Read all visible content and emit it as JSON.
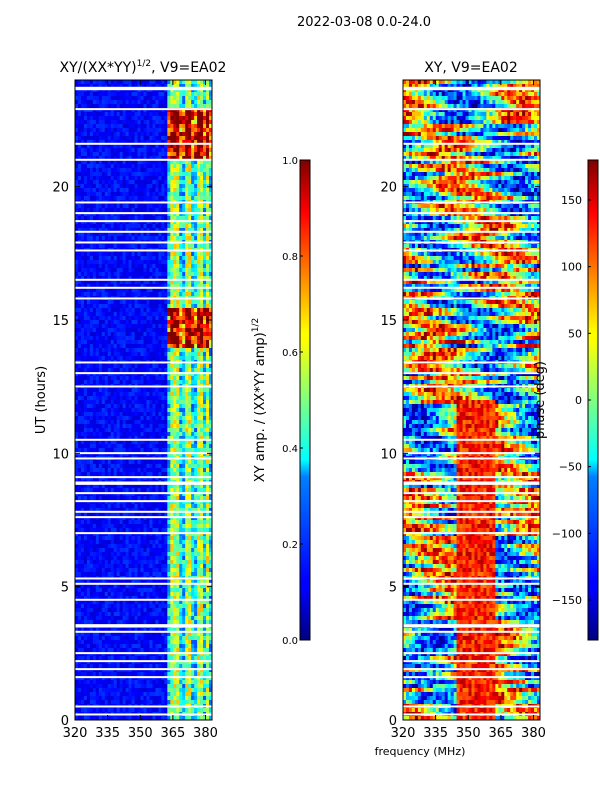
{
  "figure_title": "2022-03-08 0.0-24.0",
  "chart_data": [
    {
      "type": "heatmap",
      "title": "XY/(XX*YY)$^{1/2}$, V9=EA02",
      "title_text": "XY/(XX*YY)",
      "title_sup": "1/2",
      "title_suffix": ", V9=EA02",
      "xlabel": "",
      "ylabel": "UT (hours)",
      "xlim": [
        320,
        383
      ],
      "ylim": [
        0,
        24
      ],
      "xticks": [
        320,
        335,
        350,
        365,
        380
      ],
      "yticks": [
        0,
        5,
        10,
        15,
        20
      ],
      "colorbar": {
        "label": "XY amp. / (XX*YY amp)$^{1/2}$",
        "label_text": "XY amp. / (XX*YY amp)",
        "label_sup": "1/2",
        "range": [
          0.0,
          1.0
        ],
        "ticks": [
          "0.0",
          "0.2",
          "0.4",
          "0.6",
          "0.8",
          "1.0"
        ],
        "colormap": "jet"
      }
    },
    {
      "type": "heatmap",
      "title": "XY, V9=EA02",
      "xlabel": "frequency (MHz)",
      "ylabel": "",
      "xlim": [
        320,
        383
      ],
      "ylim": [
        0,
        24
      ],
      "xticks": [
        320,
        335,
        350,
        365,
        380
      ],
      "yticks": [
        0,
        5,
        10,
        15,
        20
      ],
      "colorbar": {
        "label": "phase (deg)",
        "range": [
          -180,
          180
        ],
        "ticks": [
          "−150",
          "−100",
          "−50",
          "0",
          "50",
          "100",
          "150"
        ],
        "colormap": "jet"
      }
    }
  ]
}
